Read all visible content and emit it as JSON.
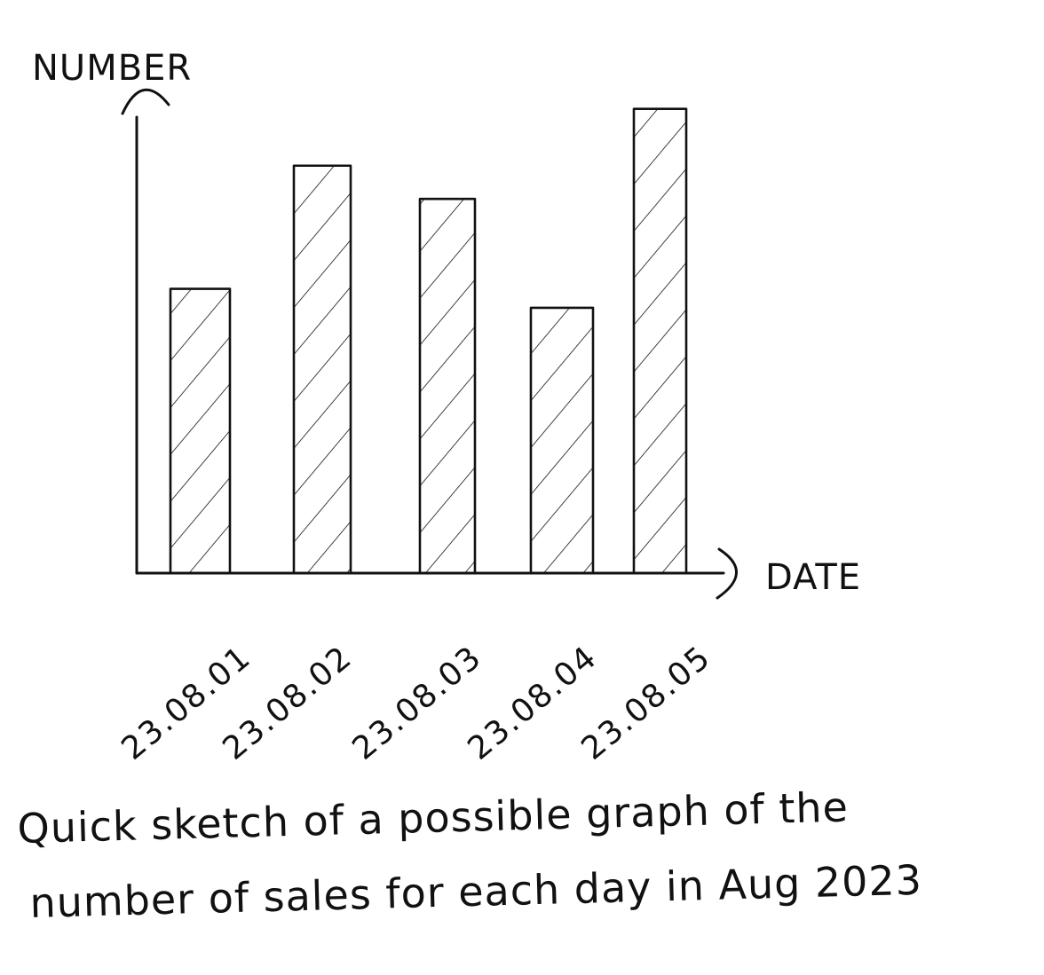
{
  "chart_data": {
    "type": "bar",
    "categories": [
      "23.08.01",
      "23.08.02",
      "23.08.03",
      "23.08.04",
      "23.08.05"
    ],
    "values": [
      6,
      8.6,
      7.9,
      5.6,
      9.8
    ],
    "xlabel": "DATE",
    "ylabel": "NUMBER",
    "ylim": [
      0,
      10
    ],
    "grid": false,
    "legend": "none",
    "style": "hand-drawn sketch with diagonal hatching",
    "bar_fill": "diagonal-hatch",
    "colors": {
      "ink": "#111111",
      "background": "#ffffff"
    }
  },
  "caption": {
    "line1": "Quick sketch of a possible graph of the",
    "line2": "number of sales for each day in Aug 2023"
  }
}
